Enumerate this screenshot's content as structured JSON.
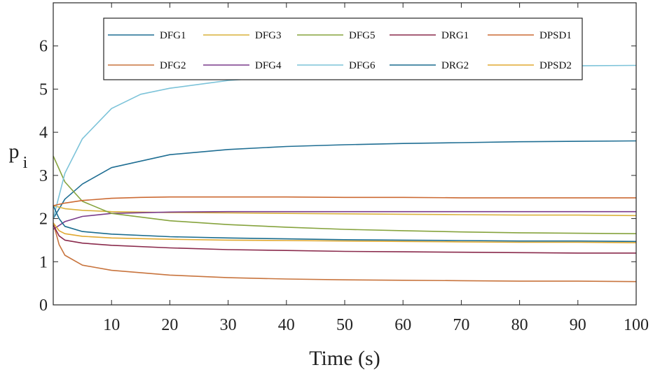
{
  "chart_data": {
    "type": "line",
    "xlabel": "Time (s)",
    "ylabel": "p",
    "ylabel_sub": "i",
    "xlim": [
      0,
      100
    ],
    "ylim": [
      0,
      7
    ],
    "xticks": [
      10,
      20,
      30,
      40,
      50,
      60,
      70,
      80,
      90,
      100
    ],
    "yticks": [
      0,
      1,
      2,
      3,
      4,
      5,
      6
    ],
    "grid": false,
    "legend_position": "top",
    "series": [
      {
        "name": "DFG1",
        "color": "#1f6e93",
        "x": [
          0,
          2,
          5,
          10,
          20,
          30,
          40,
          50,
          60,
          70,
          80,
          90,
          100
        ],
        "y": [
          2.0,
          2.45,
          2.8,
          3.18,
          3.48,
          3.6,
          3.67,
          3.71,
          3.74,
          3.76,
          3.78,
          3.79,
          3.8
        ]
      },
      {
        "name": "DFG2",
        "color": "#c8743d",
        "x": [
          0,
          1,
          2,
          5,
          10,
          20,
          30,
          40,
          50,
          60,
          70,
          80,
          90,
          100
        ],
        "y": [
          1.9,
          1.4,
          1.15,
          0.92,
          0.8,
          0.69,
          0.63,
          0.6,
          0.58,
          0.57,
          0.56,
          0.55,
          0.55,
          0.54
        ]
      },
      {
        "name": "DFG3",
        "color": "#d9b13a",
        "x": [
          0,
          2,
          5,
          10,
          20,
          30,
          40,
          50,
          60,
          70,
          80,
          90,
          100
        ],
        "y": [
          2.3,
          2.23,
          2.19,
          2.16,
          2.14,
          2.13,
          2.12,
          2.11,
          2.1,
          2.09,
          2.08,
          2.08,
          2.07
        ]
      },
      {
        "name": "DFG4",
        "color": "#7a3a8a",
        "x": [
          0,
          2,
          5,
          10,
          20,
          30,
          40,
          50,
          60,
          70,
          80,
          90,
          100
        ],
        "y": [
          1.75,
          1.93,
          2.05,
          2.12,
          2.15,
          2.16,
          2.16,
          2.16,
          2.16,
          2.16,
          2.16,
          2.16,
          2.16
        ]
      },
      {
        "name": "DFG5",
        "color": "#86a33d",
        "x": [
          0,
          2,
          5,
          10,
          20,
          30,
          40,
          50,
          60,
          70,
          80,
          90,
          100
        ],
        "y": [
          3.45,
          2.85,
          2.4,
          2.12,
          1.95,
          1.86,
          1.8,
          1.75,
          1.72,
          1.69,
          1.67,
          1.66,
          1.65
        ]
      },
      {
        "name": "DFG6",
        "color": "#7cc3d9",
        "x": [
          0,
          2,
          5,
          10,
          15,
          20,
          30,
          40,
          50,
          60,
          70,
          80,
          90,
          100
        ],
        "y": [
          2.0,
          3.05,
          3.85,
          4.55,
          4.88,
          5.02,
          5.2,
          5.3,
          5.38,
          5.44,
          5.49,
          5.52,
          5.54,
          5.55
        ]
      },
      {
        "name": "DRG1",
        "color": "#8a2a4c",
        "x": [
          0,
          1,
          2,
          5,
          10,
          20,
          30,
          40,
          50,
          60,
          70,
          80,
          90,
          100
        ],
        "y": [
          1.85,
          1.6,
          1.5,
          1.43,
          1.38,
          1.32,
          1.28,
          1.26,
          1.24,
          1.23,
          1.22,
          1.21,
          1.2,
          1.2
        ]
      },
      {
        "name": "DRG2",
        "color": "#1a6c8e",
        "x": [
          0,
          1,
          2,
          5,
          10,
          20,
          30,
          40,
          50,
          60,
          70,
          80,
          90,
          100
        ],
        "y": [
          2.3,
          2.0,
          1.82,
          1.7,
          1.64,
          1.58,
          1.55,
          1.53,
          1.51,
          1.5,
          1.49,
          1.48,
          1.48,
          1.47
        ]
      },
      {
        "name": "DPSD1",
        "color": "#cc6a33",
        "x": [
          0,
          2,
          5,
          10,
          15,
          20,
          30,
          40,
          50,
          60,
          70,
          80,
          90,
          100
        ],
        "y": [
          2.3,
          2.36,
          2.42,
          2.47,
          2.49,
          2.5,
          2.5,
          2.5,
          2.49,
          2.49,
          2.48,
          2.48,
          2.48,
          2.48
        ]
      },
      {
        "name": "DPSD2",
        "color": "#e0a830",
        "x": [
          0,
          1,
          2,
          5,
          10,
          20,
          30,
          40,
          50,
          60,
          70,
          80,
          90,
          100
        ],
        "y": [
          1.9,
          1.72,
          1.65,
          1.59,
          1.55,
          1.52,
          1.5,
          1.49,
          1.48,
          1.47,
          1.46,
          1.45,
          1.45,
          1.44
        ]
      }
    ],
    "legend_order": [
      "DFG1",
      "DFG3",
      "DFG5",
      "DRG1",
      "DPSD1",
      "DFG2",
      "DFG4",
      "DFG6",
      "DRG2",
      "DPSD2"
    ]
  }
}
